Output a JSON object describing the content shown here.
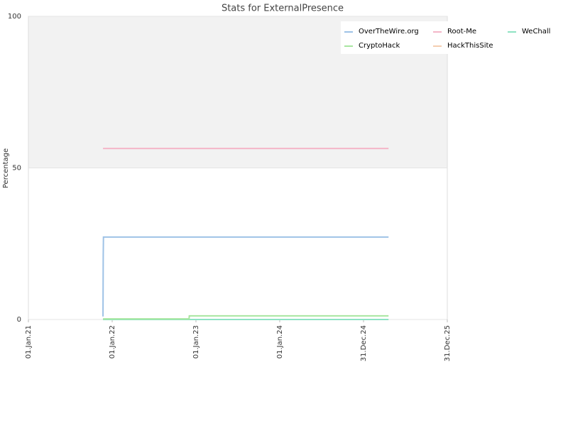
{
  "chart_data": {
    "type": "line",
    "title": "Stats for ExternalPresence",
    "ylabel": "Percentage",
    "xlim": [
      "2021-01-01",
      "2025-12-31"
    ],
    "xticks": [
      {
        "value": "2021-01-01",
        "label": "01.Jan.21"
      },
      {
        "value": "2022-01-01",
        "label": "01.Jan.22"
      },
      {
        "value": "2023-01-01",
        "label": "01.Jan.23"
      },
      {
        "value": "2024-01-01",
        "label": "01.Jan.24"
      },
      {
        "value": "2024-12-31",
        "label": "31.Dec.24"
      },
      {
        "value": "2025-12-31",
        "label": "31.Dec.25"
      }
    ],
    "ylim": [
      0,
      100
    ],
    "yticks": [
      0,
      50,
      100
    ],
    "band": [
      50,
      100
    ],
    "series": [
      {
        "name": "OverTheWire.org",
        "color": "#9ec2e6",
        "x": [
          "2021-11-22",
          "2021-11-23",
          "2021-11-24",
          "2025-04-19"
        ],
        "values": [
          1,
          21,
          27.2,
          27.2
        ]
      },
      {
        "name": "Root-Me",
        "color": "#f4b6c8",
        "x": [
          "2021-11-22",
          "2025-04-19"
        ],
        "values": [
          56.4,
          56.4
        ]
      },
      {
        "name": "WeChall",
        "color": "#8fe3c3",
        "x": [
          "2021-11-22",
          "2025-04-19"
        ],
        "values": [
          0,
          0
        ]
      },
      {
        "name": "CryptoHack",
        "color": "#a8e6a0",
        "x": [
          "2021-11-22",
          "2022-12-02",
          "2022-12-03",
          "2025-04-19"
        ],
        "values": [
          0.2,
          0.2,
          1.2,
          1.2
        ]
      },
      {
        "name": "HackThisSite",
        "color": "#f4cdb0",
        "x": [],
        "values": []
      }
    ]
  }
}
